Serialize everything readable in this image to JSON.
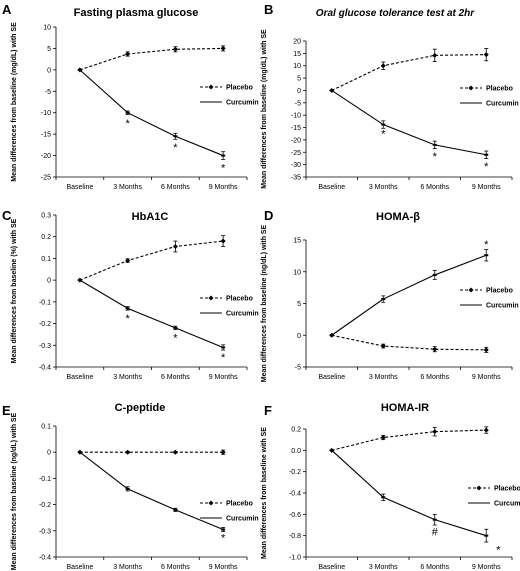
{
  "chart_data": [
    {
      "panel": "A",
      "type": "line",
      "title": "Fasting plasma glucose",
      "ylabel": "Mean differences from baseline (mg/dL) with SE",
      "categories": [
        "Baseline",
        "3 Months",
        "6 Months",
        "9 Months"
      ],
      "ylim": [
        -25,
        10
      ],
      "yticks": [
        -25,
        -20,
        -15,
        -10,
        -5,
        0,
        5,
        10
      ],
      "ytick_labels": [
        "-25",
        "-20",
        "-15",
        "-10",
        "-5",
        "0",
        "5",
        "10"
      ],
      "series": [
        {
          "name": "Placebo",
          "values": [
            0,
            3.7,
            4.8,
            5.0
          ],
          "se": [
            0,
            0.5,
            0.6,
            0.6
          ],
          "style": "dashed"
        },
        {
          "name": "Curcumin",
          "values": [
            0,
            -10.0,
            -15.5,
            -20.0
          ],
          "se": [
            0,
            0.4,
            0.7,
            0.9
          ],
          "style": "solid"
        }
      ],
      "annotations": [
        {
          "text": "*",
          "x": "3 Months",
          "y": -12.4
        },
        {
          "text": "*",
          "x": "6 Months",
          "y": -18.0
        },
        {
          "text": "*",
          "x": "9 Months",
          "y": -22.8
        }
      ]
    },
    {
      "panel": "B",
      "type": "line",
      "title": "Oral glucose tolerance test at 2hr",
      "ylabel": "Mean differences from baseline (mg/dL) with SE",
      "categories": [
        "Baseline",
        "3 Months",
        "6 Months",
        "9 Months"
      ],
      "ylim": [
        -35,
        20
      ],
      "yticks": [
        -35,
        -30,
        -25,
        -20,
        -15,
        -10,
        -5,
        0,
        5,
        10,
        15,
        20
      ],
      "ytick_labels": [
        "-35",
        "-30",
        "-25",
        "-20",
        "-15",
        "-10",
        "-5",
        "0",
        "5",
        "10",
        "15",
        "20"
      ],
      "series": [
        {
          "name": "Placebo",
          "values": [
            0,
            10.0,
            14.2,
            14.5
          ],
          "se": [
            0,
            1.5,
            2.5,
            2.5
          ],
          "style": "dashed"
        },
        {
          "name": "Curcumin",
          "values": [
            0,
            -13.8,
            -22.0,
            -26.0
          ],
          "se": [
            0,
            1.5,
            1.5,
            1.5
          ],
          "style": "solid"
        }
      ],
      "annotations": [
        {
          "text": "*",
          "x": "3 Months",
          "y": -17.5
        },
        {
          "text": "*",
          "x": "6 Months",
          "y": -26.5
        },
        {
          "text": "*",
          "x": "9 Months",
          "y": -30.5
        }
      ]
    },
    {
      "panel": "C",
      "type": "line",
      "title": "HbA1C",
      "ylabel": "Mean differences from baseline (%) with SE",
      "categories": [
        "Baseline",
        "3 Months",
        "6 Months",
        "9 Months"
      ],
      "ylim": [
        -0.4,
        0.3
      ],
      "yticks": [
        -0.4,
        -0.3,
        -0.2,
        -0.1,
        0,
        0.1,
        0.2,
        0.3
      ],
      "ytick_labels": [
        "-0.4",
        "-0.3",
        "-0.2",
        "-0.1",
        "0",
        "0.1",
        "0.2",
        "0.3"
      ],
      "series": [
        {
          "name": "Placebo",
          "values": [
            0,
            0.09,
            0.155,
            0.18
          ],
          "se": [
            0,
            0.008,
            0.025,
            0.025
          ],
          "style": "dashed"
        },
        {
          "name": "Curcumin",
          "values": [
            0,
            -0.13,
            -0.22,
            -0.31
          ],
          "se": [
            0,
            0.008,
            0.008,
            0.012
          ],
          "style": "solid"
        }
      ],
      "annotations": [
        {
          "text": "*",
          "x": "3 Months",
          "y": -0.175
        },
        {
          "text": "*",
          "x": "6 Months",
          "y": -0.265
        },
        {
          "text": "*",
          "x": "9 Months",
          "y": -0.355
        }
      ]
    },
    {
      "panel": "D",
      "type": "line",
      "title": "HOMA-β",
      "ylabel": "Mean differences from baseline (ng/dL) with SE",
      "categories": [
        "Baseline",
        "3 Months",
        "6 Months",
        "9 Months"
      ],
      "ylim": [
        -5,
        15
      ],
      "yticks": [
        -5,
        0,
        5,
        10,
        15
      ],
      "ytick_labels": [
        "-5",
        "0",
        "5",
        "10",
        "15"
      ],
      "series": [
        {
          "name": "Placebo",
          "values": [
            0,
            -1.7,
            -2.2,
            -2.3
          ],
          "se": [
            0,
            0.3,
            0.4,
            0.4
          ],
          "style": "dashed"
        },
        {
          "name": "Curcumin",
          "values": [
            0,
            5.7,
            9.5,
            12.6
          ],
          "se": [
            0,
            0.5,
            0.7,
            0.9
          ],
          "style": "solid"
        }
      ],
      "annotations": [
        {
          "text": "*",
          "x": "9 Months",
          "y": 14.4
        }
      ]
    },
    {
      "panel": "E",
      "type": "line",
      "title": "C-peptide",
      "ylabel": "Mean differences from baseline (ng/dL) with SE",
      "categories": [
        "Baseline",
        "3 Months",
        "6 Months",
        "9 Months"
      ],
      "ylim": [
        -0.4,
        0.1
      ],
      "yticks": [
        -0.4,
        -0.3,
        -0.2,
        -0.1,
        0,
        0.1
      ],
      "ytick_labels": [
        "-0.4",
        "-0.3",
        "-0.2",
        "-0.1",
        "0",
        "0.1"
      ],
      "series": [
        {
          "name": "Placebo",
          "values": [
            0,
            0,
            0,
            0
          ],
          "se": [
            0,
            0.003,
            0.003,
            0.008
          ],
          "style": "dashed"
        },
        {
          "name": "Curcumin",
          "values": [
            0,
            -0.14,
            -0.22,
            -0.295
          ],
          "se": [
            0,
            0.008,
            0.006,
            0.008
          ],
          "style": "solid"
        }
      ],
      "annotations": [
        {
          "text": "*",
          "x": "9 Months",
          "y": -0.325
        }
      ]
    },
    {
      "panel": "F",
      "type": "line",
      "title": "HOMA-IR",
      "ylabel": "Mean differences from baseline with SE",
      "categories": [
        "Baseline",
        "3 Months",
        "6 Months",
        "9 Months"
      ],
      "ylim": [
        -1.0,
        0.2
      ],
      "yticks": [
        -1.0,
        -0.8,
        -0.6,
        -0.4,
        -0.2,
        0,
        0.2
      ],
      "ytick_labels": [
        "-1.0",
        "-0.8",
        "-0.6",
        "-0.4",
        "-0.2",
        "0.0",
        "0.2"
      ],
      "series": [
        {
          "name": "Placebo",
          "values": [
            0,
            0.12,
            0.175,
            0.19
          ],
          "se": [
            0,
            0.02,
            0.04,
            0.03
          ],
          "style": "dashed"
        },
        {
          "name": "Curcumin",
          "values": [
            0,
            -0.44,
            -0.65,
            -0.8
          ],
          "se": [
            0,
            0.03,
            0.05,
            0.06
          ],
          "style": "solid"
        }
      ],
      "annotations": [
        {
          "text": "#",
          "x": "6 Months",
          "y": -0.76
        },
        {
          "text": "*",
          "x": "9 Months",
          "y": -0.93,
          "offset": "right"
        }
      ]
    }
  ]
}
